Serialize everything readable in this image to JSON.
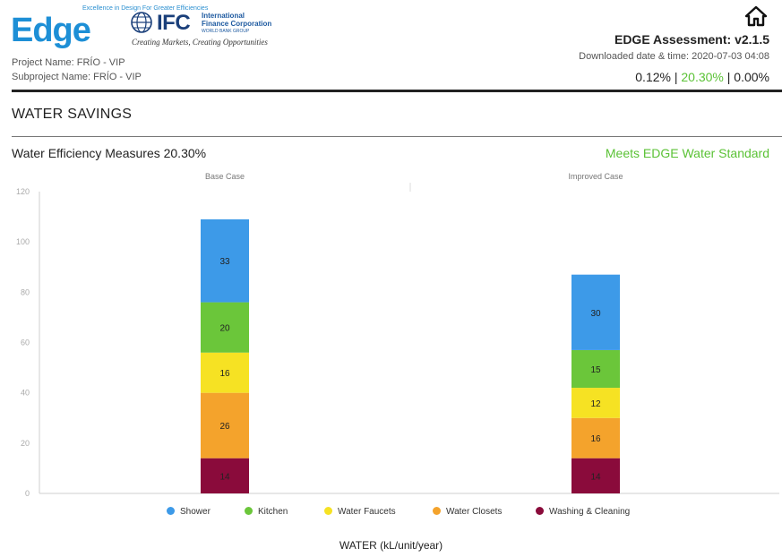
{
  "header": {
    "edge_logo_text": "Edge",
    "edge_tagline": "Excellence in Design For Greater Efficiencies",
    "ifc_logo_text": "IFC",
    "ifc_full_name_line1": "International",
    "ifc_full_name_line2": "Finance Corporation",
    "ifc_group": "WORLD BANK GROUP",
    "ifc_tagline": "Creating Markets, Creating Opportunities",
    "project_name": "Project Name: FRÍO - VIP",
    "subproject_name": "Subproject Name: FRÍO - VIP",
    "assessment_title": "EDGE Assessment: v2.1.5",
    "downloaded": "Downloaded date & time: 2020-07-03 04:08",
    "pct_energy": "0.12%",
    "pct_water": "20.30%",
    "pct_materials": "0.00%",
    "separator": "|",
    "home_icon": "home-icon"
  },
  "section": {
    "title": "WATER SAVINGS",
    "measures_label": "Water Efficiency Measures  20.30%",
    "standard_status": "Meets EDGE Water Standard"
  },
  "colors": {
    "green": "#5bc236",
    "shower": "#3d9ae8",
    "kitchen": "#6bc63a",
    "faucets": "#f6e223",
    "closets": "#f4a32c",
    "washing": "#8a0b3b"
  },
  "chart_data": {
    "type": "bar",
    "stacked": true,
    "categories": [
      "Base Case",
      "Improved Case"
    ],
    "xlabel": "WATER (kL/unit/year)",
    "ylabel": "",
    "ylim": [
      0,
      120
    ],
    "yticks": [
      0,
      20,
      40,
      60,
      80,
      100,
      120
    ],
    "grid": false,
    "legend_position": "bottom",
    "series": [
      {
        "name": "Washing & Cleaning",
        "color": "#8a0b3b",
        "values": [
          14,
          14
        ]
      },
      {
        "name": "Water Closets",
        "color": "#f4a32c",
        "values": [
          26,
          16
        ]
      },
      {
        "name": "Water Faucets",
        "color": "#f6e223",
        "values": [
          16,
          12
        ]
      },
      {
        "name": "Kitchen",
        "color": "#6bc63a",
        "values": [
          20,
          15
        ]
      },
      {
        "name": "Shower",
        "color": "#3d9ae8",
        "values": [
          33,
          30
        ]
      }
    ],
    "legend_order": [
      "Shower",
      "Kitchen",
      "Water Faucets",
      "Water Closets",
      "Washing & Cleaning"
    ]
  }
}
